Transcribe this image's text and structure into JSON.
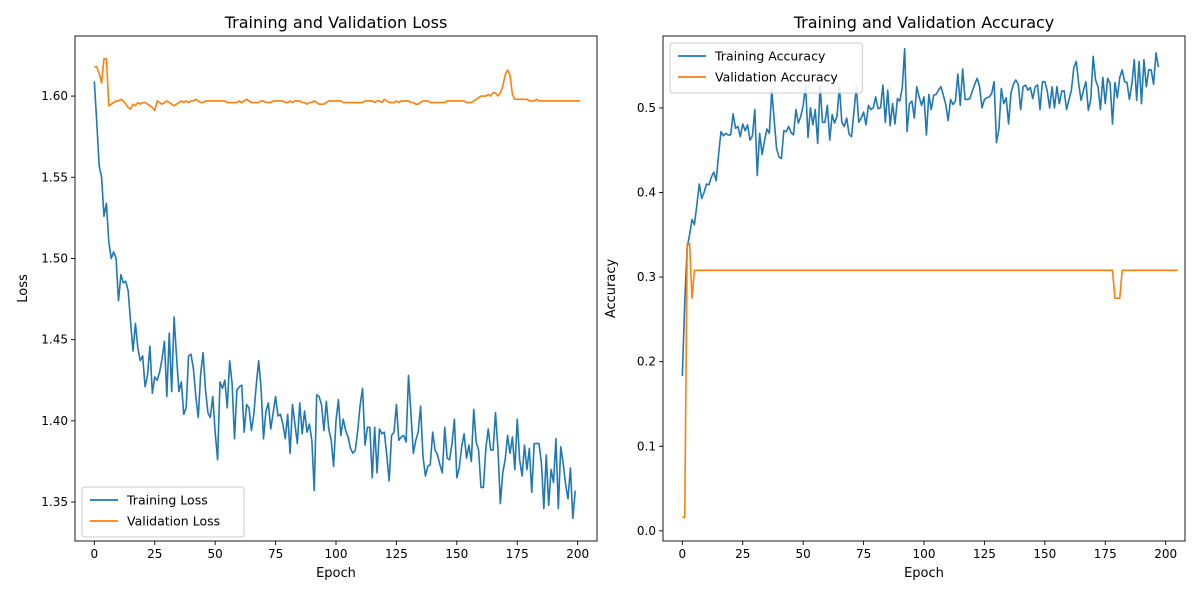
{
  "chart_data": [
    {
      "type": "line",
      "title": "Training and Validation Loss",
      "xlabel": "Epoch",
      "ylabel": "Loss",
      "xlim": [
        -8,
        208
      ],
      "ylim": [
        1.326,
        1.637
      ],
      "xticks": [
        0,
        25,
        50,
        75,
        100,
        125,
        150,
        175,
        200
      ],
      "yticks": [
        1.35,
        1.4,
        1.45,
        1.5,
        1.55,
        1.6
      ],
      "ytick_labels": [
        "1.35",
        "1.40",
        "1.45",
        "1.50",
        "1.55",
        "1.60"
      ],
      "grid": false,
      "legend": "bottom-left",
      "series": [
        {
          "name": "Training Loss",
          "color": "#1f77b4",
          "x_start": 0,
          "x_step": 1,
          "values": [
            1.609,
            1.584,
            1.557,
            1.55,
            1.526,
            1.534,
            1.51,
            1.5,
            1.504,
            1.5,
            1.474,
            1.49,
            1.485,
            1.486,
            1.48,
            1.461,
            1.443,
            1.46,
            1.445,
            1.437,
            1.44,
            1.421,
            1.428,
            1.446,
            1.417,
            1.427,
            1.425,
            1.43,
            1.438,
            1.449,
            1.415,
            1.454,
            1.418,
            1.464,
            1.44,
            1.418,
            1.424,
            1.404,
            1.408,
            1.44,
            1.441,
            1.432,
            1.415,
            1.402,
            1.429,
            1.442,
            1.419,
            1.405,
            1.402,
            1.415,
            1.393,
            1.376,
            1.424,
            1.42,
            1.425,
            1.408,
            1.437,
            1.423,
            1.389,
            1.419,
            1.421,
            1.422,
            1.393,
            1.41,
            1.408,
            1.394,
            1.404,
            1.422,
            1.437,
            1.42,
            1.389,
            1.406,
            1.411,
            1.395,
            1.405,
            1.415,
            1.403,
            1.404,
            1.398,
            1.389,
            1.404,
            1.38,
            1.41,
            1.398,
            1.386,
            1.411,
            1.392,
            1.406,
            1.393,
            1.398,
            1.388,
            1.357,
            1.416,
            1.415,
            1.41,
            1.394,
            1.412,
            1.395,
            1.388,
            1.372,
            1.4,
            1.413,
            1.391,
            1.401,
            1.394,
            1.39,
            1.383,
            1.38,
            1.382,
            1.394,
            1.41,
            1.42,
            1.385,
            1.396,
            1.396,
            1.365,
            1.396,
            1.368,
            1.395,
            1.392,
            1.393,
            1.379,
            1.363,
            1.391,
            1.393,
            1.41,
            1.388,
            1.39,
            1.391,
            1.387,
            1.428,
            1.405,
            1.38,
            1.388,
            1.393,
            1.409,
            1.378,
            1.366,
            1.372,
            1.373,
            1.393,
            1.382,
            1.379,
            1.373,
            1.368,
            1.396,
            1.377,
            1.376,
            1.386,
            1.401,
            1.365,
            1.371,
            1.384,
            1.392,
            1.377,
            1.385,
            1.375,
            1.407,
            1.387,
            1.382,
            1.359,
            1.359,
            1.383,
            1.395,
            1.382,
            1.382,
            1.405,
            1.383,
            1.349,
            1.368,
            1.376,
            1.391,
            1.38,
            1.39,
            1.37,
            1.401,
            1.376,
            1.366,
            1.385,
            1.37,
            1.383,
            1.356,
            1.386,
            1.386,
            1.386,
            1.374,
            1.346,
            1.379,
            1.348,
            1.37,
            1.362,
            1.389,
            1.346,
            1.384,
            1.374,
            1.361,
            1.352,
            1.371,
            1.34,
            1.357
          ]
        },
        {
          "name": "Validation Loss",
          "color": "#ff7f0e",
          "x_start": 0,
          "x_step": 1,
          "values": [
            1.618,
            1.618,
            1.614,
            1.608,
            1.623,
            1.623,
            1.594,
            1.595,
            1.596,
            1.597,
            1.597,
            1.598,
            1.597,
            1.595,
            1.593,
            1.592,
            1.595,
            1.594,
            1.596,
            1.595,
            1.596,
            1.596,
            1.595,
            1.594,
            1.593,
            1.591,
            1.597,
            1.596,
            1.595,
            1.596,
            1.597,
            1.596,
            1.595,
            1.594,
            1.595,
            1.596,
            1.597,
            1.596,
            1.597,
            1.596,
            1.597,
            1.597,
            1.598,
            1.597,
            1.596,
            1.596,
            1.597,
            1.597,
            1.597,
            1.597,
            1.597,
            1.597,
            1.597,
            1.597,
            1.597,
            1.596,
            1.596,
            1.596,
            1.596,
            1.596,
            1.597,
            1.596,
            1.597,
            1.598,
            1.597,
            1.596,
            1.596,
            1.596,
            1.596,
            1.597,
            1.597,
            1.596,
            1.596,
            1.596,
            1.597,
            1.597,
            1.597,
            1.597,
            1.597,
            1.596,
            1.596,
            1.597,
            1.596,
            1.597,
            1.597,
            1.597,
            1.596,
            1.596,
            1.595,
            1.596,
            1.596,
            1.597,
            1.596,
            1.595,
            1.595,
            1.595,
            1.596,
            1.597,
            1.597,
            1.597,
            1.597,
            1.597,
            1.597,
            1.596,
            1.596,
            1.596,
            1.596,
            1.596,
            1.596,
            1.596,
            1.596,
            1.596,
            1.597,
            1.597,
            1.597,
            1.597,
            1.596,
            1.597,
            1.597,
            1.596,
            1.598,
            1.597,
            1.596,
            1.596,
            1.596,
            1.597,
            1.596,
            1.597,
            1.597,
            1.597,
            1.597,
            1.596,
            1.596,
            1.595,
            1.595,
            1.596,
            1.597,
            1.597,
            1.597,
            1.596,
            1.596,
            1.596,
            1.596,
            1.596,
            1.596,
            1.596,
            1.597,
            1.597,
            1.597,
            1.597,
            1.597,
            1.597,
            1.597,
            1.597,
            1.596,
            1.596,
            1.596,
            1.597,
            1.598,
            1.599,
            1.6,
            1.6,
            1.6,
            1.601,
            1.6,
            1.602,
            1.602,
            1.6,
            1.602,
            1.606,
            1.613,
            1.616,
            1.613,
            1.601,
            1.598,
            1.598,
            1.598,
            1.598,
            1.598,
            1.598,
            1.597,
            1.597,
            1.597,
            1.598,
            1.597,
            1.597,
            1.597,
            1.597,
            1.597,
            1.597,
            1.597,
            1.597,
            1.597,
            1.597,
            1.597,
            1.597,
            1.597,
            1.597,
            1.597,
            1.597,
            1.597,
            1.597
          ]
        }
      ]
    },
    {
      "type": "line",
      "title": "Training and Validation Accuracy",
      "xlabel": "Epoch",
      "ylabel": "Accuracy",
      "xlim": [
        -8,
        208
      ],
      "ylim": [
        -0.012,
        0.585
      ],
      "xticks": [
        0,
        25,
        50,
        75,
        100,
        125,
        150,
        175,
        200
      ],
      "yticks": [
        0.0,
        0.1,
        0.2,
        0.3,
        0.4,
        0.5
      ],
      "ytick_labels": [
        "0.0",
        "0.1",
        "0.2",
        "0.3",
        "0.4",
        "0.5"
      ],
      "grid": false,
      "legend": "top-left",
      "series": [
        {
          "name": "Training Accuracy",
          "color": "#1f77b4",
          "x_start": 0,
          "x_step": 1,
          "values": [
            0.183,
            0.27,
            0.335,
            0.35,
            0.368,
            0.362,
            0.385,
            0.41,
            0.393,
            0.4,
            0.41,
            0.409,
            0.418,
            0.424,
            0.414,
            0.445,
            0.472,
            0.467,
            0.47,
            0.468,
            0.468,
            0.493,
            0.476,
            0.478,
            0.466,
            0.481,
            0.473,
            0.48,
            0.462,
            0.467,
            0.498,
            0.42,
            0.47,
            0.445,
            0.461,
            0.475,
            0.47,
            0.521,
            0.486,
            0.452,
            0.442,
            0.44,
            0.473,
            0.472,
            0.478,
            0.471,
            0.468,
            0.498,
            0.482,
            0.49,
            0.503,
            0.527,
            0.465,
            0.5,
            0.48,
            0.498,
            0.458,
            0.526,
            0.483,
            0.483,
            0.503,
            0.462,
            0.492,
            0.482,
            0.49,
            0.525,
            0.483,
            0.478,
            0.488,
            0.469,
            0.466,
            0.495,
            0.525,
            0.483,
            0.488,
            0.495,
            0.48,
            0.503,
            0.498,
            0.5,
            0.513,
            0.499,
            0.5,
            0.527,
            0.483,
            0.521,
            0.479,
            0.505,
            0.481,
            0.511,
            0.508,
            0.524,
            0.57,
            0.472,
            0.505,
            0.508,
            0.488,
            0.525,
            0.513,
            0.503,
            0.513,
            0.468,
            0.516,
            0.498,
            0.515,
            0.516,
            0.521,
            0.525,
            0.515,
            0.504,
            0.485,
            0.51,
            0.504,
            0.508,
            0.54,
            0.503,
            0.546,
            0.51,
            0.51,
            0.511,
            0.52,
            0.528,
            0.535,
            0.525,
            0.5,
            0.51,
            0.512,
            0.513,
            0.517,
            0.531,
            0.459,
            0.475,
            0.523,
            0.505,
            0.512,
            0.481,
            0.518,
            0.528,
            0.533,
            0.528,
            0.498,
            0.525,
            0.527,
            0.521,
            0.524,
            0.511,
            0.525,
            0.527,
            0.498,
            0.531,
            0.531,
            0.52,
            0.5,
            0.525,
            0.5,
            0.525,
            0.505,
            0.52,
            0.52,
            0.498,
            0.51,
            0.521,
            0.548,
            0.555,
            0.529,
            0.509,
            0.521,
            0.531,
            0.497,
            0.51,
            0.561,
            0.533,
            0.525,
            0.498,
            0.536,
            0.505,
            0.535,
            0.529,
            0.481,
            0.53,
            0.512,
            0.536,
            0.545,
            0.531,
            0.53,
            0.51,
            0.528,
            0.557,
            0.509,
            0.555,
            0.505,
            0.557,
            0.525,
            0.545,
            0.545,
            0.528,
            0.565,
            0.548
          ]
        },
        {
          "name": "Validation Accuracy",
          "color": "#ff7f0e",
          "x_start": 0,
          "x_step": 1,
          "values": [
            0.016,
            0.016,
            0.34,
            0.34,
            0.275,
            0.308,
            0.308,
            0.308,
            0.308,
            0.308,
            0.308,
            0.308,
            0.308,
            0.308,
            0.308,
            0.308,
            0.308,
            0.308,
            0.308,
            0.308,
            0.308,
            0.308,
            0.308,
            0.308,
            0.308,
            0.308,
            0.308,
            0.308,
            0.308,
            0.308,
            0.308,
            0.308,
            0.308,
            0.308,
            0.308,
            0.308,
            0.308,
            0.308,
            0.308,
            0.308,
            0.308,
            0.308,
            0.308,
            0.308,
            0.308,
            0.308,
            0.308,
            0.308,
            0.308,
            0.308,
            0.308,
            0.308,
            0.308,
            0.308,
            0.308,
            0.308,
            0.308,
            0.308,
            0.308,
            0.308,
            0.308,
            0.308,
            0.308,
            0.308,
            0.308,
            0.308,
            0.308,
            0.308,
            0.308,
            0.308,
            0.308,
            0.308,
            0.308,
            0.308,
            0.308,
            0.308,
            0.308,
            0.308,
            0.308,
            0.308,
            0.308,
            0.308,
            0.308,
            0.308,
            0.308,
            0.308,
            0.308,
            0.308,
            0.308,
            0.308,
            0.308,
            0.308,
            0.308,
            0.308,
            0.308,
            0.308,
            0.308,
            0.308,
            0.308,
            0.308,
            0.308,
            0.308,
            0.308,
            0.308,
            0.308,
            0.308,
            0.308,
            0.308,
            0.308,
            0.308,
            0.308,
            0.308,
            0.308,
            0.308,
            0.308,
            0.308,
            0.308,
            0.308,
            0.308,
            0.308,
            0.308,
            0.308,
            0.308,
            0.308,
            0.308,
            0.308,
            0.308,
            0.308,
            0.308,
            0.308,
            0.308,
            0.308,
            0.308,
            0.308,
            0.308,
            0.308,
            0.308,
            0.308,
            0.308,
            0.308,
            0.308,
            0.308,
            0.308,
            0.308,
            0.308,
            0.308,
            0.308,
            0.308,
            0.308,
            0.308,
            0.308,
            0.308,
            0.308,
            0.308,
            0.308,
            0.308,
            0.308,
            0.308,
            0.308,
            0.308,
            0.308,
            0.308,
            0.308,
            0.308,
            0.308,
            0.308,
            0.308,
            0.308,
            0.308,
            0.308,
            0.308,
            0.308,
            0.308,
            0.308,
            0.308,
            0.308,
            0.308,
            0.308,
            0.308,
            0.275,
            0.275,
            0.275,
            0.308,
            0.308,
            0.308,
            0.308,
            0.308,
            0.308,
            0.308,
            0.308,
            0.308,
            0.308,
            0.308,
            0.308,
            0.308,
            0.308,
            0.308,
            0.308,
            0.308,
            0.308,
            0.308,
            0.308,
            0.308,
            0.308,
            0.308,
            0.308
          ]
        }
      ]
    }
  ]
}
